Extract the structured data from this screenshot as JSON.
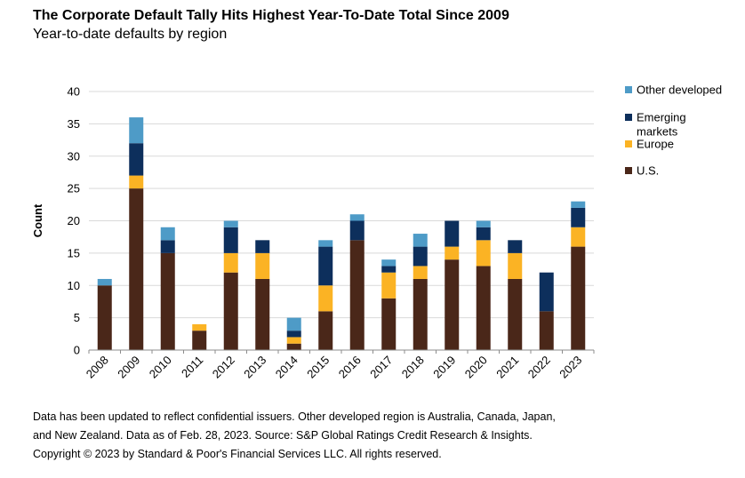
{
  "chart_data": {
    "type": "bar",
    "stacked": true,
    "title": "The Corporate Default Tally Hits Highest Year-To-Date Total Since 2009",
    "subtitle": "Year-to-date defaults by region",
    "xlabel": "",
    "ylabel": "Count",
    "ylim": [
      0,
      40
    ],
    "yticks": [
      0,
      5,
      10,
      15,
      20,
      25,
      30,
      35,
      40
    ],
    "grid": true,
    "legend_position": "right",
    "categories": [
      "2008",
      "2009",
      "2010",
      "2011",
      "2012",
      "2013",
      "2014",
      "2015",
      "2016",
      "2017",
      "2018",
      "2019",
      "2020",
      "2021",
      "2022",
      "2023"
    ],
    "series": [
      {
        "name": "U.S.",
        "color": "#4a2719",
        "values": [
          10,
          25,
          15,
          3,
          12,
          11,
          1,
          6,
          17,
          8,
          11,
          14,
          13,
          11,
          6,
          16
        ]
      },
      {
        "name": "Europe",
        "color": "#fbb324",
        "values": [
          0,
          2,
          0,
          1,
          3,
          4,
          1,
          4,
          0,
          4,
          2,
          2,
          4,
          4,
          0,
          3
        ]
      },
      {
        "name": "Emerging markets",
        "color": "#0d2f5c",
        "values": [
          0,
          5,
          2,
          0,
          4,
          2,
          1,
          6,
          3,
          1,
          3,
          4,
          2,
          2,
          6,
          3
        ]
      },
      {
        "name": "Other developed",
        "color": "#4e9bc7",
        "values": [
          1,
          4,
          2,
          0,
          1,
          0,
          2,
          1,
          1,
          1,
          2,
          0,
          1,
          0,
          0,
          1
        ]
      }
    ],
    "legend": [
      "Other developed",
      "Emerging markets",
      "Europe",
      "U.S."
    ]
  },
  "footnote": {
    "line1": "Data has been updated to reflect confidential issuers. Other developed region is Australia, Canada, Japan,",
    "line2": "and New Zealand. Data as of Feb. 28, 2023. Source: S&P Global Ratings Credit Research & Insights.",
    "line3": "Copyright © 2023 by Standard & Poor's Financial Services LLC. All rights reserved."
  }
}
